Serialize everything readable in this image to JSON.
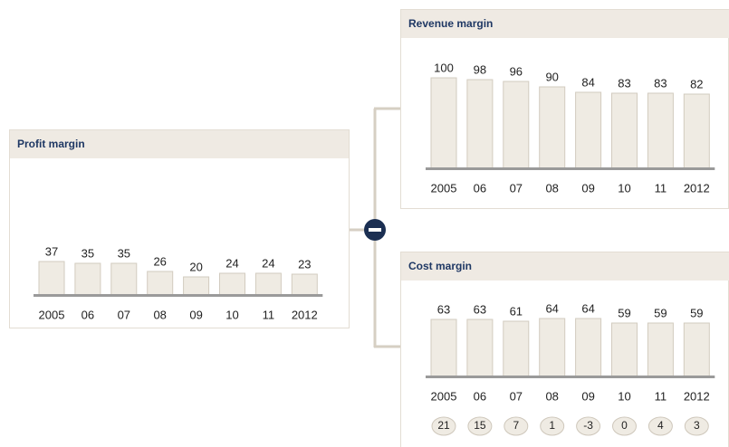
{
  "chart_data": [
    {
      "type": "bar",
      "title": "Profit margin",
      "categories": [
        "2005",
        "06",
        "07",
        "08",
        "09",
        "10",
        "11",
        "2012"
      ],
      "values": [
        37,
        35,
        35,
        26,
        20,
        24,
        24,
        23
      ],
      "color": "#efebe3"
    },
    {
      "type": "bar",
      "title": "Revenue margin",
      "categories": [
        "2005",
        "06",
        "07",
        "08",
        "09",
        "10",
        "11",
        "2012"
      ],
      "values": [
        100,
        98,
        96,
        90,
        84,
        83,
        83,
        82
      ],
      "color": "#efebe3"
    },
    {
      "type": "bar",
      "title": "Cost margin",
      "categories": [
        "2005",
        "06",
        "07",
        "08",
        "09",
        "10",
        "11",
        "2012"
      ],
      "values": [
        63,
        63,
        61,
        64,
        64,
        59,
        59,
        59
      ],
      "color": "#efebe3",
      "badges": [
        21,
        15,
        7,
        1,
        -3,
        0,
        4,
        3
      ]
    }
  ]
}
